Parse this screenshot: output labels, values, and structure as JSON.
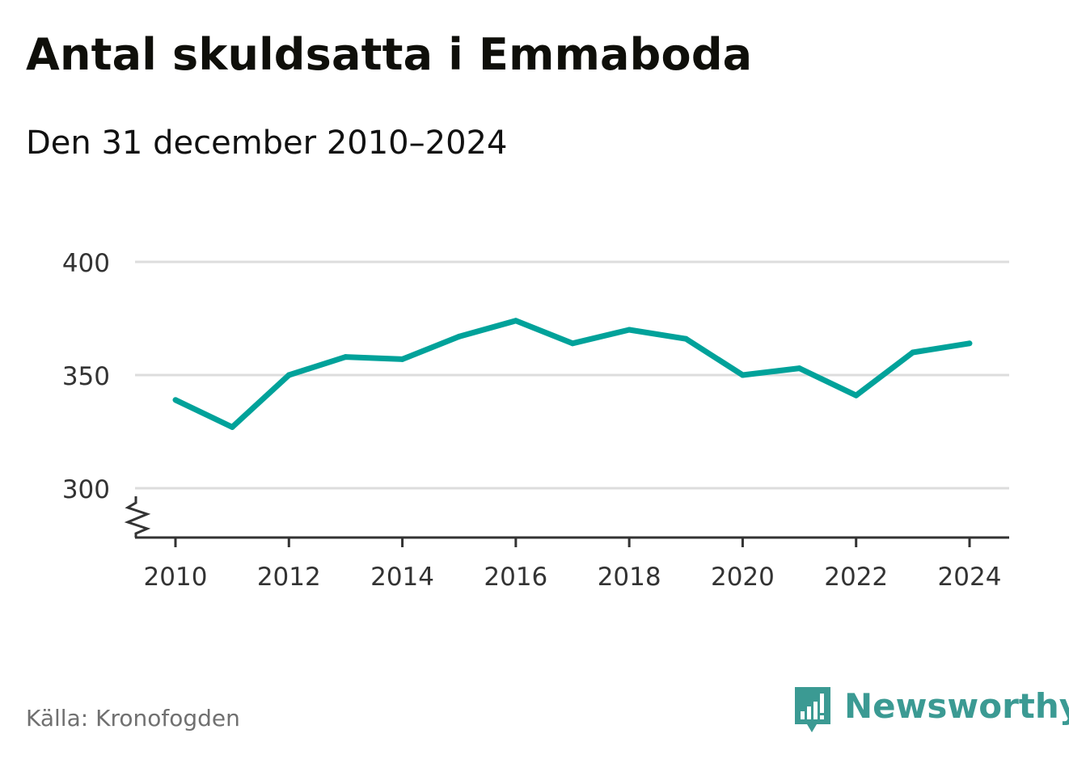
{
  "header": {
    "title": "Antal skuldsatta i Emmaboda",
    "subtitle": "Den 31 december 2010–2024"
  },
  "footer": {
    "source": "Källa: Kronofogden",
    "brand": "Newsworthy",
    "brand_icon": "newsworthy-logo-icon"
  },
  "colors": {
    "line": "#00a29a",
    "grid": "#dddddd",
    "axis": "#333333",
    "brand": "#3b9a93"
  },
  "chart_data": {
    "type": "line",
    "x": [
      2010,
      2011,
      2012,
      2013,
      2014,
      2015,
      2016,
      2017,
      2018,
      2019,
      2020,
      2021,
      2022,
      2023,
      2024
    ],
    "series": [
      {
        "values": [
          339,
          327,
          350,
          358,
          357,
          367,
          374,
          364,
          370,
          366,
          350,
          353,
          341,
          360,
          364
        ]
      }
    ],
    "x_ticks": [
      "2010",
      "2012",
      "2014",
      "2016",
      "2018",
      "2020",
      "2022",
      "2024"
    ],
    "y_ticks": [
      "300",
      "350",
      "400"
    ],
    "ylim": [
      300,
      400
    ],
    "y_axis_break": true,
    "grid": "horizontal",
    "legend": "none"
  }
}
